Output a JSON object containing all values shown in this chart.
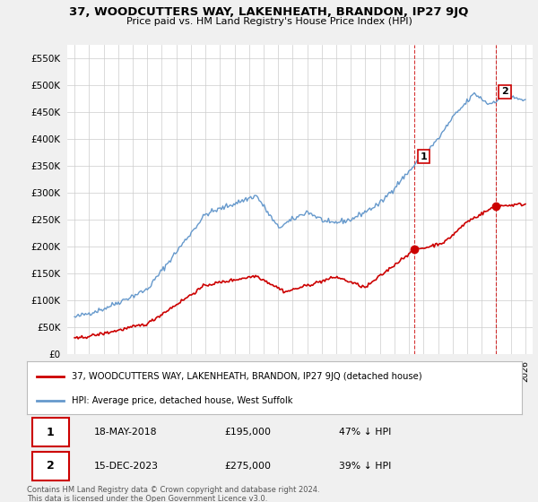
{
  "title": "37, WOODCUTTERS WAY, LAKENHEATH, BRANDON, IP27 9JQ",
  "subtitle": "Price paid vs. HM Land Registry's House Price Index (HPI)",
  "ylim": [
    0,
    575000
  ],
  "yticks": [
    0,
    50000,
    100000,
    150000,
    200000,
    250000,
    300000,
    350000,
    400000,
    450000,
    500000,
    550000
  ],
  "ytick_labels": [
    "£0",
    "£50K",
    "£100K",
    "£150K",
    "£200K",
    "£250K",
    "£300K",
    "£350K",
    "£400K",
    "£450K",
    "£500K",
    "£550K"
  ],
  "hpi_color": "#6699cc",
  "sale_color": "#cc0000",
  "legend_sale_label": "37, WOODCUTTERS WAY, LAKENHEATH, BRANDON, IP27 9JQ (detached house)",
  "legend_hpi_label": "HPI: Average price, detached house, West Suffolk",
  "sale1_date": "18-MAY-2018",
  "sale1_price": "£195,000",
  "sale1_stat": "47% ↓ HPI",
  "sale1_x": 2018.372,
  "sale1_y": 195000,
  "sale2_date": "15-DEC-2023",
  "sale2_price": "£275,000",
  "sale2_stat": "39% ↓ HPI",
  "sale2_x": 2023.954,
  "sale2_y": 275000,
  "copyright_text": "Contains HM Land Registry data © Crown copyright and database right 2024.\nThis data is licensed under the Open Government Licence v3.0.",
  "background_color": "#f0f0f0",
  "plot_bg_color": "#ffffff",
  "grid_color": "#cccccc",
  "xlim_left": 1994.5,
  "xlim_right": 2026.5
}
